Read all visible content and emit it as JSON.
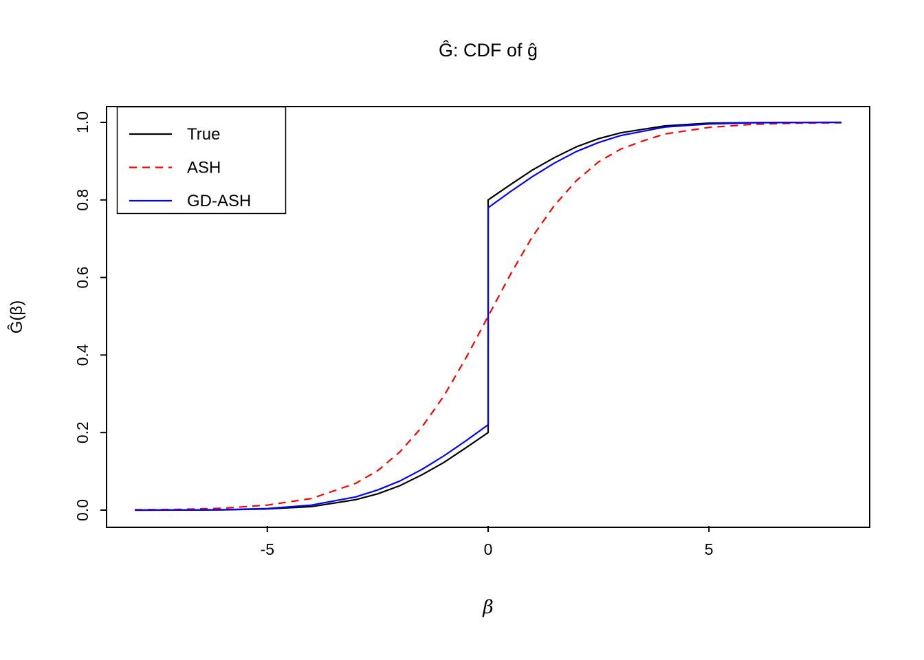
{
  "title": "Ĝ: CDF of ĝ",
  "x_axis": {
    "label": "β",
    "tick_values": [
      -5,
      0,
      5
    ],
    "tick_labels": [
      "-5",
      "0",
      "5"
    ],
    "lim": [
      -8.64,
      8.64
    ]
  },
  "y_axis": {
    "label": "Ĝ(β)",
    "tick_values": [
      0.0,
      0.2,
      0.4,
      0.6,
      0.8,
      1.0
    ],
    "tick_labels": [
      "0.0",
      "0.2",
      "0.4",
      "0.6",
      "0.8",
      "1.0"
    ],
    "lim": [
      -0.04,
      1.04
    ]
  },
  "legend": {
    "position": "top-left",
    "items": [
      {
        "label": "True",
        "color": "#000000",
        "style": "solid"
      },
      {
        "label": "ASH",
        "color": "#ff0000",
        "style": "dashed"
      },
      {
        "label": "GD-ASH",
        "color": "#0000ff",
        "style": "solid"
      }
    ]
  },
  "colors": {
    "background": "#ffffff",
    "axis": "#000000",
    "true_line": "#000000",
    "ash_line": "#ff0000",
    "gdash_line": "#0000ff"
  },
  "chart_data": {
    "type": "line",
    "title": "Ĝ: CDF of ĝ",
    "xlabel": "β",
    "ylabel": "Ĝ(β)",
    "xlim": [
      -8.64,
      8.64
    ],
    "ylim": [
      -0.04,
      1.04
    ],
    "grid": false,
    "legend_position": "top-left",
    "description": "CDFs of estimated priors: true mixture CDF with point mass at 0 (jump from 0.2 to 0.8), ASH smooth estimate, GD-ASH estimate with jump from 0.22 to 0.78",
    "series": [
      {
        "name": "True",
        "color": "#000000",
        "style": "solid",
        "points": [
          [
            -8,
            0.0
          ],
          [
            -7,
            0.0001
          ],
          [
            -6,
            0.0005
          ],
          [
            -5,
            0.003
          ],
          [
            -4,
            0.009
          ],
          [
            -3,
            0.027
          ],
          [
            -2.5,
            0.042
          ],
          [
            -2,
            0.063
          ],
          [
            -1.5,
            0.091
          ],
          [
            -1,
            0.123
          ],
          [
            -0.5,
            0.161
          ],
          [
            0,
            0.2
          ],
          [
            0,
            0.8
          ],
          [
            0.5,
            0.839
          ],
          [
            1,
            0.877
          ],
          [
            1.5,
            0.909
          ],
          [
            2,
            0.937
          ],
          [
            2.5,
            0.958
          ],
          [
            3,
            0.973
          ],
          [
            4,
            0.991
          ],
          [
            5,
            0.998
          ],
          [
            6,
            0.9995
          ],
          [
            7,
            0.9999
          ],
          [
            8,
            1.0
          ]
        ]
      },
      {
        "name": "ASH",
        "color": "#ff0000",
        "style": "dashed",
        "points": [
          [
            -8,
            0.001
          ],
          [
            -7,
            0.002
          ],
          [
            -6,
            0.005
          ],
          [
            -5,
            0.013
          ],
          [
            -4,
            0.03
          ],
          [
            -3,
            0.069
          ],
          [
            -2.5,
            0.102
          ],
          [
            -2,
            0.15
          ],
          [
            -1.5,
            0.214
          ],
          [
            -1,
            0.295
          ],
          [
            -0.5,
            0.393
          ],
          [
            0,
            0.5
          ],
          [
            0.5,
            0.607
          ],
          [
            1,
            0.705
          ],
          [
            1.5,
            0.786
          ],
          [
            2,
            0.85
          ],
          [
            2.5,
            0.898
          ],
          [
            3,
            0.931
          ],
          [
            3.5,
            0.952
          ],
          [
            4,
            0.97
          ],
          [
            5,
            0.987
          ],
          [
            6,
            0.995
          ],
          [
            7,
            0.998
          ],
          [
            8,
            0.999
          ]
        ]
      },
      {
        "name": "GD-ASH",
        "color": "#0000ff",
        "style": "solid",
        "points": [
          [
            -8,
            0.0
          ],
          [
            -7,
            0.0002
          ],
          [
            -6,
            0.001
          ],
          [
            -5,
            0.004
          ],
          [
            -4,
            0.013
          ],
          [
            -3,
            0.034
          ],
          [
            -2.5,
            0.052
          ],
          [
            -2,
            0.075
          ],
          [
            -1.5,
            0.105
          ],
          [
            -1,
            0.14
          ],
          [
            -0.5,
            0.179
          ],
          [
            0,
            0.22
          ],
          [
            0,
            0.78
          ],
          [
            0.5,
            0.821
          ],
          [
            1,
            0.86
          ],
          [
            1.5,
            0.895
          ],
          [
            2,
            0.925
          ],
          [
            2.5,
            0.948
          ],
          [
            3,
            0.966
          ],
          [
            4,
            0.988
          ],
          [
            5,
            0.996
          ],
          [
            6,
            0.999
          ],
          [
            7,
            0.9998
          ],
          [
            8,
            1.0
          ]
        ]
      }
    ]
  }
}
